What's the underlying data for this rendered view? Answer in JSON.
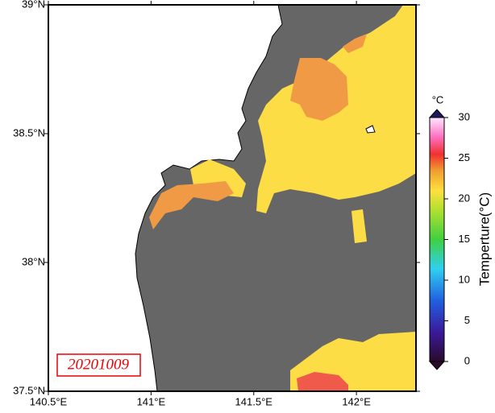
{
  "map": {
    "date_label": "20201009",
    "lonlim": [
      140.5,
      142.29
    ],
    "latlim": [
      37.5,
      39
    ],
    "lon_ticks": [
      {
        "value": 140.5,
        "label": "140.5°E"
      },
      {
        "value": 141,
        "label": "141°E"
      },
      {
        "value": 141.5,
        "label": "141.5°E"
      },
      {
        "value": 142,
        "label": "142°E"
      }
    ],
    "lat_ticks": [
      {
        "value": 37.5,
        "label": "37.5°N"
      },
      {
        "value": 38,
        "label": "38°N"
      },
      {
        "value": 38.5,
        "label": "38.5°N"
      },
      {
        "value": 39,
        "label": "39°N"
      }
    ],
    "colorbar": {
      "unit": "°C",
      "title": "Temperture(°C)",
      "lim": [
        0,
        30
      ],
      "ticks": [
        0,
        5,
        10,
        15,
        20,
        25,
        30
      ]
    }
  }
}
